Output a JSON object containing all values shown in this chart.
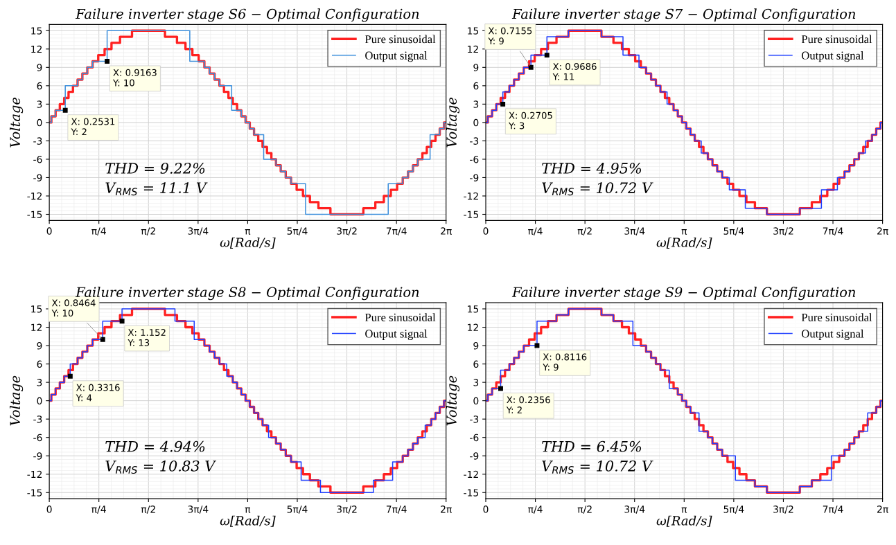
{
  "chart_data": [
    {
      "type": "step",
      "title": "Failure inverter stage S6 − Optimal Configuration",
      "xlabel": "ω[Rad/s]",
      "ylabel": "Voltage",
      "xlim": [
        0,
        6.2832
      ],
      "xticks": [
        0,
        {
          "value": 0.7854,
          "label": "π/4"
        },
        {
          "value": 1.5708,
          "label": "π/2"
        },
        {
          "value": 2.3562,
          "label": "3π/4"
        },
        {
          "value": 3.1416,
          "label": "π"
        },
        {
          "value": 3.927,
          "label": "5π/4"
        },
        {
          "value": 4.7124,
          "label": "3π/2"
        },
        {
          "value": 5.4978,
          "label": "7π/4"
        },
        {
          "value": 6.2832,
          "label": "2π"
        }
      ],
      "ylim": [
        -16,
        16
      ],
      "yticks": [
        -15,
        -12,
        -9,
        -6,
        -3,
        0,
        3,
        6,
        9,
        12,
        15
      ],
      "grid": true,
      "legend": "top right",
      "series": [
        {
          "name": "Pure sinusoidal",
          "color": "#ff2020",
          "x": [
            0,
            0.033,
            0.1,
            0.167,
            0.236,
            0.305,
            0.375,
            0.448,
            0.524,
            0.602,
            0.686,
            0.775,
            0.876,
            0.985,
            1.12,
            1.31,
            1.832,
            2.022,
            2.157,
            2.266,
            2.366,
            2.456,
            2.539,
            2.618,
            2.694,
            2.766,
            2.837,
            2.906,
            2.974,
            3.041,
            3.108,
            3.175,
            3.242,
            3.309,
            3.377,
            3.447,
            3.517,
            3.59,
            3.665,
            3.744,
            3.828,
            3.917,
            4.017,
            4.127,
            4.262,
            4.452,
            4.973,
            5.163,
            5.298,
            5.408,
            5.508,
            5.597,
            5.681,
            5.759,
            5.835,
            5.908,
            5.978,
            6.048,
            6.116,
            6.183,
            6.25,
            6.283
          ],
          "values": [
            0,
            1,
            2,
            3,
            4,
            5,
            6,
            7,
            8,
            9,
            10,
            11,
            12,
            13,
            14,
            15,
            14,
            13,
            12,
            11,
            10,
            9,
            8,
            7,
            6,
            5,
            4,
            3,
            2,
            1,
            0,
            -1,
            -2,
            -3,
            -4,
            -5,
            -6,
            -7,
            -8,
            -9,
            -10,
            -11,
            -12,
            -13,
            -14,
            -15,
            -14,
            -13,
            -12,
            -11,
            -10,
            -9,
            -8,
            -7,
            -6,
            -5,
            -4,
            -3,
            -2,
            -1,
            0,
            0
          ]
        },
        {
          "name": "Output signal",
          "color": "#3d8fdb",
          "x": [
            0,
            0.033,
            0.1,
            0.253,
            0.448,
            0.524,
            0.602,
            0.686,
            0.916,
            2.225,
            2.456,
            2.539,
            2.618,
            2.694,
            2.888,
            3.041,
            3.108,
            3.175,
            3.242,
            3.395,
            3.59,
            3.665,
            3.744,
            3.828,
            4.058,
            5.367,
            5.597,
            5.681,
            5.759,
            5.835,
            6.03,
            6.183,
            6.25,
            6.283
          ],
          "values": [
            0,
            1,
            2,
            6,
            7,
            8,
            9,
            10,
            15,
            10,
            9,
            8,
            7,
            6,
            2,
            1,
            0,
            -1,
            -2,
            -6,
            -7,
            -8,
            -9,
            -10,
            -15,
            -10,
            -9,
            -8,
            -7,
            -6,
            -2,
            -1,
            0,
            0
          ]
        }
      ],
      "annotations": [
        {
          "text": "X: 0.2531\nY: 2",
          "x": 0.2531,
          "y": 2
        },
        {
          "text": "X: 0.9163\nY: 10",
          "x": 0.9163,
          "y": 10
        },
        "THD = 9.22%",
        "V$_{RMS}$ = 11.1 V"
      ]
    },
    {
      "type": "step",
      "title": "Failure inverter stage S7 − Optimal Configuration",
      "xlabel": "ω[Rad/s]",
      "ylabel": "Voltage",
      "xlim": [
        0,
        6.2832
      ],
      "xticks": [
        0,
        {
          "value": 0.7854,
          "label": "π/4"
        },
        {
          "value": 1.5708,
          "label": "π/2"
        },
        {
          "value": 2.3562,
          "label": "3π/4"
        },
        {
          "value": 3.1416,
          "label": "π"
        },
        {
          "value": 3.927,
          "label": "5π/4"
        },
        {
          "value": 4.7124,
          "label": "3π/2"
        },
        {
          "value": 5.4978,
          "label": "7π/4"
        },
        {
          "value": 6.2832,
          "label": "2π"
        }
      ],
      "ylim": [
        -16,
        16
      ],
      "yticks": [
        -15,
        -12,
        -9,
        -6,
        -3,
        0,
        3,
        6,
        9,
        12,
        15
      ],
      "grid": true,
      "legend": "top right",
      "series": [
        {
          "name": "Pure sinusoidal",
          "color": "#ff2020",
          "x": [
            0,
            0.033,
            0.1,
            0.167,
            0.236,
            0.305,
            0.375,
            0.448,
            0.524,
            0.602,
            0.686,
            0.775,
            0.876,
            0.985,
            1.12,
            1.31,
            1.832,
            2.022,
            2.157,
            2.266,
            2.366,
            2.456,
            2.539,
            2.618,
            2.694,
            2.766,
            2.837,
            2.906,
            2.974,
            3.041,
            3.108,
            3.175,
            3.242,
            3.309,
            3.377,
            3.447,
            3.517,
            3.59,
            3.665,
            3.744,
            3.828,
            3.917,
            4.017,
            4.127,
            4.262,
            4.452,
            4.973,
            5.163,
            5.298,
            5.408,
            5.508,
            5.597,
            5.681,
            5.759,
            5.835,
            5.908,
            5.978,
            6.048,
            6.116,
            6.183,
            6.25,
            6.283
          ],
          "values": [
            0,
            1,
            2,
            3,
            4,
            5,
            6,
            7,
            8,
            9,
            10,
            11,
            12,
            13,
            14,
            15,
            14,
            13,
            12,
            11,
            10,
            9,
            8,
            7,
            6,
            5,
            4,
            3,
            2,
            1,
            0,
            -1,
            -2,
            -3,
            -4,
            -5,
            -6,
            -7,
            -8,
            -9,
            -10,
            -11,
            -12,
            -13,
            -14,
            -15,
            -14,
            -13,
            -12,
            -11,
            -10,
            -9,
            -8,
            -7,
            -6,
            -5,
            -4,
            -3,
            -2,
            -1,
            0,
            0
          ]
        },
        {
          "name": "Output signal",
          "color": "#2040ff",
          "x": [
            0,
            0.033,
            0.1,
            0.167,
            0.2705,
            0.375,
            0.448,
            0.524,
            0.602,
            0.7155,
            0.9686,
            1.31,
            1.832,
            2.173,
            2.426,
            2.539,
            2.618,
            2.694,
            2.766,
            2.871,
            2.974,
            3.041,
            3.108,
            3.175,
            3.242,
            3.309,
            3.412,
            3.517,
            3.59,
            3.665,
            3.744,
            3.857,
            4.11,
            4.452,
            4.973,
            5.315,
            5.568,
            5.681,
            5.759,
            5.835,
            5.908,
            6.013,
            6.116,
            6.183,
            6.25,
            6.283
          ],
          "values": [
            0,
            1,
            2,
            3,
            5,
            6,
            7,
            8,
            9,
            11,
            14,
            15,
            14,
            11,
            9,
            8,
            7,
            6,
            5,
            3,
            2,
            1,
            0,
            -1,
            -2,
            -3,
            -5,
            -6,
            -7,
            -8,
            -9,
            -11,
            -14,
            -15,
            -14,
            -11,
            -9,
            -8,
            -7,
            -6,
            -5,
            -3,
            -2,
            -1,
            0,
            0
          ]
        }
      ],
      "annotations": [
        {
          "text": "X: 0.2705\nY: 3",
          "x": 0.2705,
          "y": 3
        },
        {
          "text": "X: 0.7155\nY: 9",
          "x": 0.7155,
          "y": 9
        },
        {
          "text": "X: 0.9686\nY: 11",
          "x": 0.9686,
          "y": 11
        },
        "THD = 4.95%",
        "V$_{RMS}$ = 10.72 V"
      ]
    },
    {
      "type": "step",
      "title": "Failure inverter stage S8 − Optimal Configuration",
      "xlabel": "ω[Rad/s]",
      "ylabel": "Voltage",
      "xlim": [
        0,
        6.2832
      ],
      "xticks": [
        0,
        {
          "value": 0.7854,
          "label": "π/4"
        },
        {
          "value": 1.5708,
          "label": "π/2"
        },
        {
          "value": 2.3562,
          "label": "3π/4"
        },
        {
          "value": 3.1416,
          "label": "π"
        },
        {
          "value": 3.927,
          "label": "5π/4"
        },
        {
          "value": 4.7124,
          "label": "3π/2"
        },
        {
          "value": 5.4978,
          "label": "7π/4"
        },
        {
          "value": 6.2832,
          "label": "2π"
        }
      ],
      "ylim": [
        -16,
        16
      ],
      "yticks": [
        -15,
        -12,
        -9,
        -6,
        -3,
        0,
        3,
        6,
        9,
        12,
        15
      ],
      "grid": true,
      "legend": "top right",
      "series": [
        {
          "name": "Pure sinusoidal",
          "color": "#ff2020",
          "x": [
            0,
            0.033,
            0.1,
            0.167,
            0.236,
            0.305,
            0.375,
            0.448,
            0.524,
            0.602,
            0.686,
            0.775,
            0.876,
            0.985,
            1.12,
            1.31,
            1.832,
            2.022,
            2.157,
            2.266,
            2.366,
            2.456,
            2.539,
            2.618,
            2.694,
            2.766,
            2.837,
            2.906,
            2.974,
            3.041,
            3.108,
            3.175,
            3.242,
            3.309,
            3.377,
            3.447,
            3.517,
            3.59,
            3.665,
            3.744,
            3.828,
            3.917,
            4.017,
            4.127,
            4.262,
            4.452,
            4.973,
            5.163,
            5.298,
            5.408,
            5.508,
            5.597,
            5.681,
            5.759,
            5.835,
            5.908,
            5.978,
            6.048,
            6.116,
            6.183,
            6.25,
            6.283
          ],
          "values": [
            0,
            1,
            2,
            3,
            4,
            5,
            6,
            7,
            8,
            9,
            10,
            11,
            12,
            13,
            14,
            15,
            14,
            13,
            12,
            11,
            10,
            9,
            8,
            7,
            6,
            5,
            4,
            3,
            2,
            1,
            0,
            -1,
            -2,
            -3,
            -4,
            -5,
            -6,
            -7,
            -8,
            -9,
            -10,
            -11,
            -12,
            -13,
            -14,
            -15,
            -14,
            -13,
            -12,
            -11,
            -10,
            -9,
            -8,
            -7,
            -6,
            -5,
            -4,
            -3,
            -2,
            -1,
            0,
            0
          ]
        },
        {
          "name": "Output signal",
          "color": "#2040ff",
          "x": [
            0,
            0.033,
            0.1,
            0.167,
            0.236,
            0.3316,
            0.448,
            0.524,
            0.602,
            0.686,
            0.8464,
            1.152,
            1.99,
            2.295,
            2.456,
            2.539,
            2.618,
            2.694,
            2.81,
            2.906,
            2.974,
            3.041,
            3.108,
            3.175,
            3.242,
            3.309,
            3.377,
            3.473,
            3.59,
            3.665,
            3.744,
            3.828,
            3.988,
            4.294,
            5.131,
            5.437,
            5.597,
            5.681,
            5.759,
            5.835,
            5.952,
            6.048,
            6.116,
            6.183,
            6.25,
            6.283
          ],
          "values": [
            0,
            1,
            2,
            3,
            4,
            6,
            7,
            8,
            9,
            10,
            13,
            15,
            13,
            10,
            9,
            8,
            7,
            6,
            4,
            3,
            2,
            1,
            0,
            -1,
            -2,
            -3,
            -4,
            -6,
            -7,
            -8,
            -9,
            -10,
            -13,
            -15,
            -13,
            -10,
            -9,
            -8,
            -7,
            -6,
            -4,
            -3,
            -2,
            -1,
            0,
            0
          ]
        }
      ],
      "annotations": [
        {
          "text": "X: 0.3316\nY: 4",
          "x": 0.3316,
          "y": 4
        },
        {
          "text": "X: 0.8464\nY: 10",
          "x": 0.8464,
          "y": 10
        },
        {
          "text": "X: 1.152\nY: 13",
          "x": 1.152,
          "y": 13
        },
        "THD = 4.94%",
        "V$_{RMS}$ = 10.83 V"
      ]
    },
    {
      "type": "step",
      "title": "Failure inverter stage S9 − Optimal Configuration",
      "xlabel": "ω[Rad/s]",
      "ylabel": "Voltage",
      "xlim": [
        0,
        6.2832
      ],
      "xticks": [
        0,
        {
          "value": 0.7854,
          "label": "π/4"
        },
        {
          "value": 1.5708,
          "label": "π/2"
        },
        {
          "value": 2.3562,
          "label": "3π/4"
        },
        {
          "value": 3.1416,
          "label": "π"
        },
        {
          "value": 3.927,
          "label": "5π/4"
        },
        {
          "value": 4.7124,
          "label": "3π/2"
        },
        {
          "value": 5.4978,
          "label": "7π/4"
        },
        {
          "value": 6.2832,
          "label": "2π"
        }
      ],
      "ylim": [
        -16,
        16
      ],
      "yticks": [
        -15,
        -12,
        -9,
        -6,
        -3,
        0,
        3,
        6,
        9,
        12,
        15
      ],
      "grid": true,
      "legend": "top right",
      "series": [
        {
          "name": "Pure sinusoidal",
          "color": "#ff2020",
          "x": [
            0,
            0.033,
            0.1,
            0.167,
            0.236,
            0.305,
            0.375,
            0.448,
            0.524,
            0.602,
            0.686,
            0.775,
            0.876,
            0.985,
            1.12,
            1.31,
            1.832,
            2.022,
            2.157,
            2.266,
            2.366,
            2.456,
            2.539,
            2.618,
            2.694,
            2.766,
            2.837,
            2.906,
            2.974,
            3.041,
            3.108,
            3.175,
            3.242,
            3.309,
            3.377,
            3.447,
            3.517,
            3.59,
            3.665,
            3.744,
            3.828,
            3.917,
            4.017,
            4.127,
            4.262,
            4.452,
            4.973,
            5.163,
            5.298,
            5.408,
            5.508,
            5.597,
            5.681,
            5.759,
            5.835,
            5.908,
            5.978,
            6.048,
            6.116,
            6.183,
            6.25,
            6.283
          ],
          "values": [
            0,
            1,
            2,
            3,
            4,
            5,
            6,
            7,
            8,
            9,
            10,
            11,
            12,
            13,
            14,
            15,
            14,
            13,
            12,
            11,
            10,
            9,
            8,
            7,
            6,
            5,
            4,
            3,
            2,
            1,
            0,
            -1,
            -2,
            -3,
            -4,
            -5,
            -6,
            -7,
            -8,
            -9,
            -10,
            -11,
            -12,
            -13,
            -14,
            -15,
            -14,
            -13,
            -12,
            -11,
            -10,
            -9,
            -8,
            -7,
            -6,
            -5,
            -4,
            -3,
            -2,
            -1,
            0,
            0
          ]
        },
        {
          "name": "Output signal",
          "color": "#2040ff",
          "x": [
            0,
            0.033,
            0.1,
            0.2356,
            0.375,
            0.448,
            0.524,
            0.602,
            0.8116,
            1.12,
            1.31,
            1.832,
            2.022,
            2.33,
            2.539,
            2.618,
            2.694,
            2.766,
            2.906,
            3.041,
            3.108,
            3.175,
            3.242,
            3.377,
            3.517,
            3.59,
            3.665,
            3.744,
            3.953,
            4.262,
            4.452,
            4.973,
            5.163,
            5.472,
            5.681,
            5.759,
            5.835,
            5.908,
            6.048,
            6.183,
            6.25,
            6.283
          ],
          "values": [
            0,
            1,
            2,
            5,
            6,
            7,
            8,
            9,
            13,
            14,
            15,
            14,
            13,
            9,
            8,
            7,
            6,
            5,
            2,
            1,
            0,
            -1,
            -2,
            -5,
            -6,
            -7,
            -8,
            -9,
            -13,
            -14,
            -15,
            -14,
            -13,
            -9,
            -8,
            -7,
            -6,
            -5,
            -2,
            -1,
            0,
            0
          ]
        }
      ],
      "annotations": [
        {
          "text": "X: 0.2356\nY: 2",
          "x": 0.2356,
          "y": 2
        },
        {
          "text": "X: 0.8116\nY: 9",
          "x": 0.8116,
          "y": 9
        },
        "THD = 6.45%",
        "V$_{RMS}$ = 10.72 V"
      ]
    }
  ]
}
